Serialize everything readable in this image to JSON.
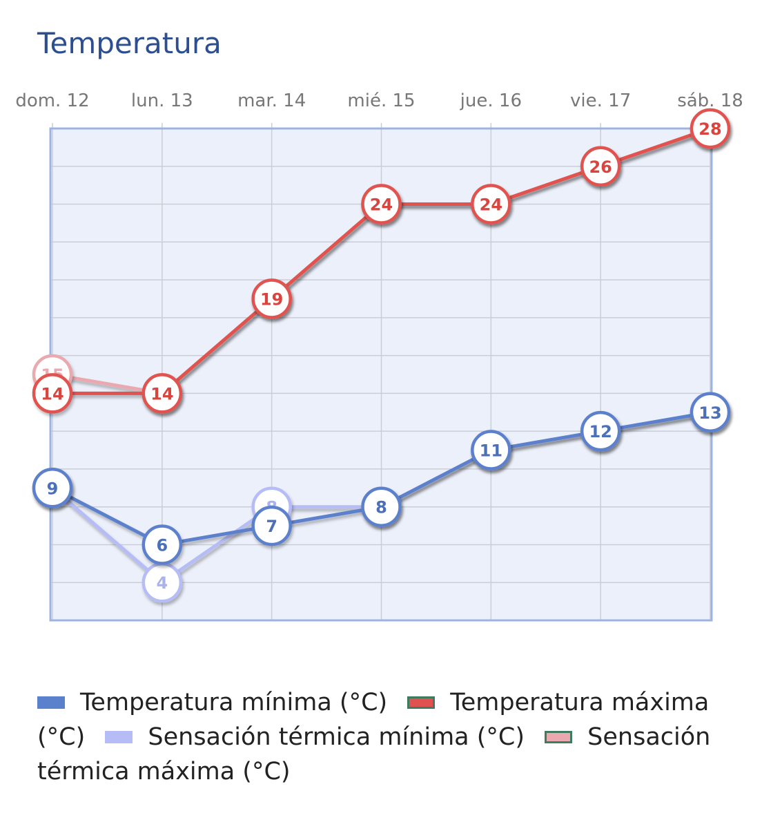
{
  "chart_data": {
    "type": "line",
    "title": "Temperatura",
    "categories": [
      "dom. 12",
      "lun. 13",
      "mar. 14",
      "mié. 15",
      "jue. 16",
      "vie. 17",
      "sáb. 18"
    ],
    "ylim": [
      2,
      28
    ],
    "grid": true,
    "legend_position": "bottom",
    "series": [
      {
        "name": "Sensación térmica mínima (°C)",
        "values": [
          9,
          4,
          8,
          8,
          11,
          12,
          13
        ],
        "color": "#b6bcf6",
        "text_color": "#aab2ee",
        "swatch_border": "#b6bcf6"
      },
      {
        "name": "Sensación térmica máxima (°C)",
        "values": [
          15,
          14,
          19,
          24,
          24,
          26,
          28
        ],
        "color": "#e9a9ae",
        "text_color": "#e9a9ae",
        "swatch_border": "#3f7b5f"
      },
      {
        "name": "Temperatura mínima (°C)",
        "values": [
          9,
          6,
          7,
          8,
          11,
          12,
          13
        ],
        "color": "#5b80cc",
        "text_color": "#4c70b8",
        "swatch_border": "#5b80cc"
      },
      {
        "name": "Temperatura máxima (°C)",
        "values": [
          14,
          14,
          19,
          24,
          24,
          26,
          28
        ],
        "color": "#e0524f",
        "text_color": "#d9443f",
        "swatch_border": "#3f7b5f"
      }
    ],
    "legend_order": [
      2,
      3,
      0,
      1
    ],
    "plot_background": "#ecf0fa",
    "plot_border": "#9db4e0",
    "grid_color": "#c9ced6"
  }
}
